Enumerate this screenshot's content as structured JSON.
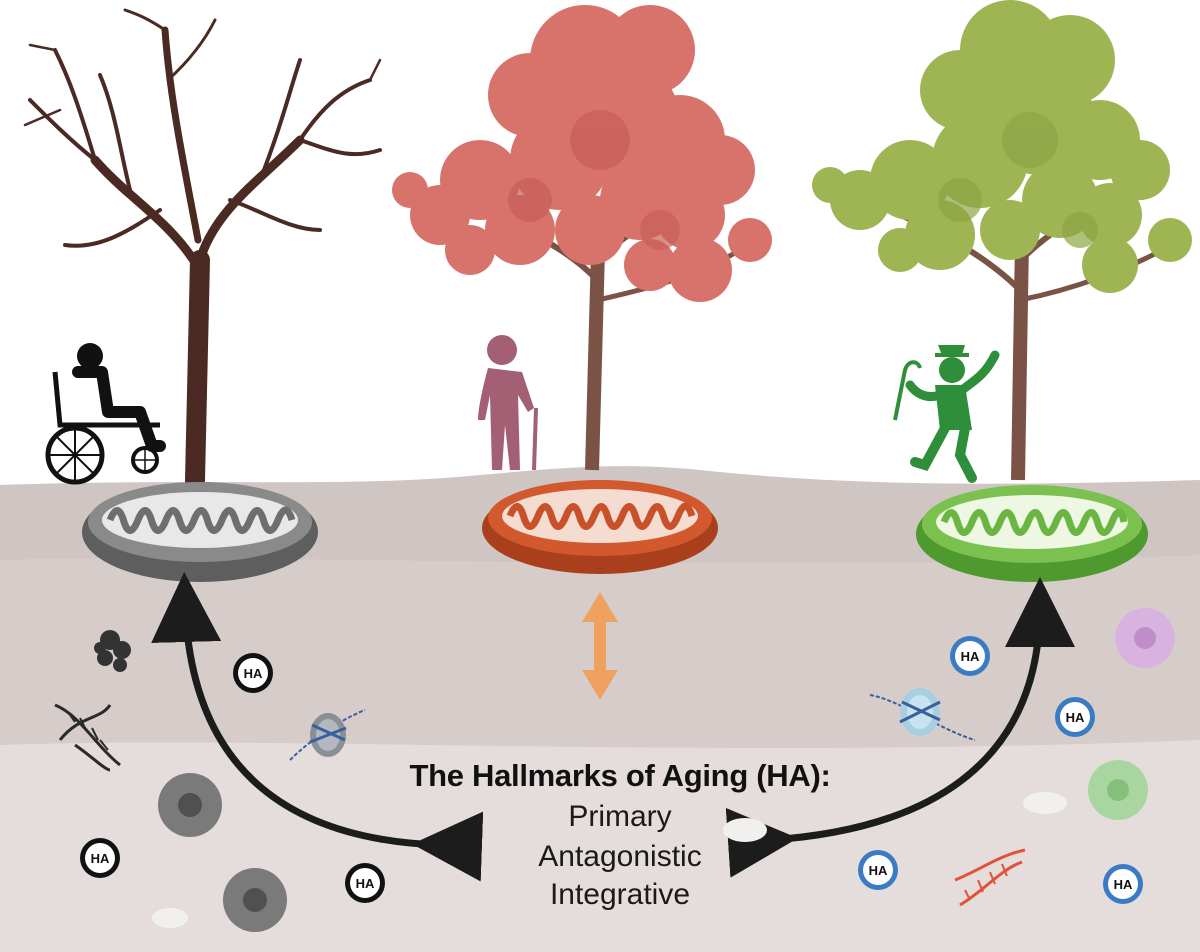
{
  "title": "The Hallmarks of Aging (HA):",
  "categories": [
    "Primary",
    "Antagonistic",
    "Integrative"
  ],
  "ha_badge": "HA",
  "colors": {
    "ground_top": "#cfc4c2",
    "ground_bottom": "#e2dbd9",
    "dead_tree": "#4a2a22",
    "red_foliage": "#d8736c",
    "green_foliage": "#9fb553",
    "trunk": "#7a5346",
    "mito_grey": "#6e6e6e",
    "mito_red": "#c8512a",
    "mito_green": "#6bb542",
    "arrow": "#1c1c1c",
    "double_arrow": "#f0a160"
  }
}
